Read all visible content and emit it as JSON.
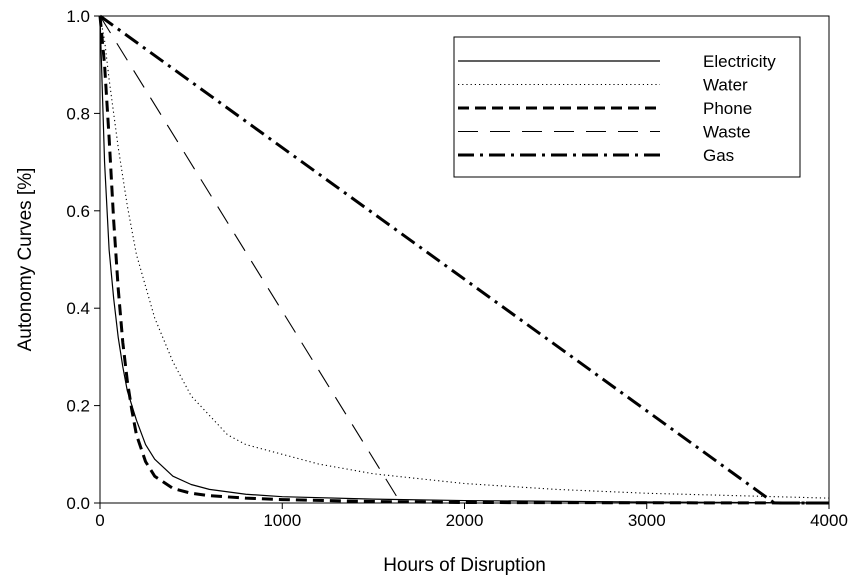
{
  "chart_data": {
    "type": "line",
    "title": "",
    "xlabel": "Hours of Disruption",
    "ylabel": "Autonomy Curves [%]",
    "xlim": [
      0,
      4000
    ],
    "ylim": [
      0,
      1.0
    ],
    "xticks": [
      0,
      1000,
      2000,
      3000,
      4000
    ],
    "yticks": [
      0.0,
      0.2,
      0.4,
      0.6,
      0.8,
      1.0
    ],
    "xtick_labels": [
      "0",
      "1000",
      "2000",
      "3000",
      "4000"
    ],
    "ytick_labels": [
      "0.0",
      "0.2",
      "0.4",
      "0.6",
      "0.8",
      "1.0"
    ],
    "grid": false,
    "legend_position": "top-right",
    "series": [
      {
        "name": "Electricity",
        "style": "solid",
        "color": "#000000",
        "x": [
          0,
          25,
          50,
          75,
          100,
          125,
          150,
          200,
          250,
          300,
          400,
          500,
          600,
          800,
          1000,
          1500,
          2000,
          3000,
          4000
        ],
        "y": [
          1.0,
          0.7,
          0.52,
          0.42,
          0.34,
          0.28,
          0.23,
          0.17,
          0.12,
          0.09,
          0.055,
          0.038,
          0.028,
          0.018,
          0.013,
          0.008,
          0.005,
          0.002,
          0.0
        ]
      },
      {
        "name": "Water",
        "style": "dotted",
        "color": "#000000",
        "x": [
          0,
          25,
          50,
          100,
          150,
          200,
          300,
          400,
          500,
          600,
          700,
          800,
          900,
          1000,
          1200,
          1500,
          2000,
          2500,
          3000,
          3500,
          4000
        ],
        "y": [
          1.0,
          0.95,
          0.87,
          0.73,
          0.61,
          0.51,
          0.38,
          0.29,
          0.22,
          0.18,
          0.14,
          0.12,
          0.11,
          0.1,
          0.08,
          0.06,
          0.04,
          0.028,
          0.02,
          0.015,
          0.01
        ]
      },
      {
        "name": "Phone",
        "style": "dashed",
        "color": "#000000",
        "x": [
          0,
          25,
          50,
          75,
          100,
          125,
          150,
          175,
          200,
          250,
          300,
          400,
          500,
          600,
          800,
          1000,
          1500,
          2000,
          4000
        ],
        "y": [
          1.0,
          0.9,
          0.75,
          0.58,
          0.44,
          0.33,
          0.25,
          0.19,
          0.14,
          0.085,
          0.055,
          0.03,
          0.02,
          0.015,
          0.01,
          0.007,
          0.003,
          0.001,
          0.0
        ]
      },
      {
        "name": "Waste",
        "style": "long-dash",
        "color": "#000000",
        "x": [
          0,
          1650,
          4000
        ],
        "y": [
          1.0,
          0.0,
          0.0
        ]
      },
      {
        "name": "Gas",
        "style": "dash-dot",
        "color": "#000000",
        "x": [
          0,
          3700,
          4000
        ],
        "y": [
          1.0,
          0.0,
          0.0
        ]
      }
    ]
  }
}
